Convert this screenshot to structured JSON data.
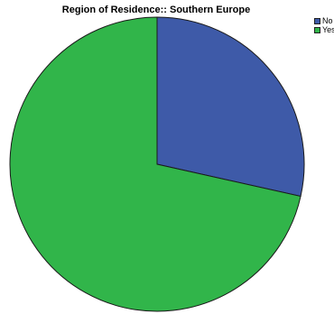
{
  "chart_data": {
    "type": "pie",
    "title": "Region of Residence:: Southern Europe",
    "slices": [
      {
        "label": "No",
        "value": 28.5,
        "color": "#3e5aa8"
      },
      {
        "label": "Yes",
        "value": 71.5,
        "color": "#31b54a"
      }
    ],
    "start_angle_deg": 0,
    "direction": "clockwise",
    "legend_position": "top-right"
  }
}
